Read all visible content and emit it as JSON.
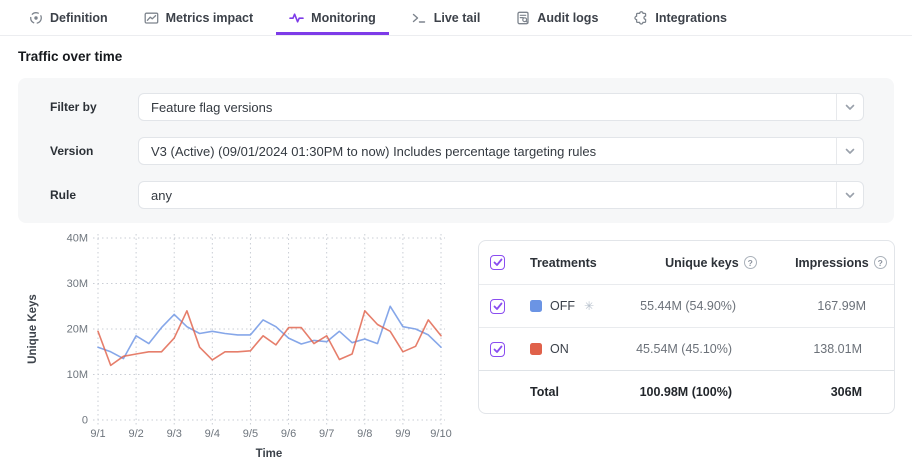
{
  "colors": {
    "accent": "#7d3be8",
    "off_blue": "#6b94e4",
    "on_red": "#e0614a"
  },
  "tabs": {
    "items": [
      {
        "label": "Definition",
        "icon": "target-icon",
        "active": false
      },
      {
        "label": "Metrics impact",
        "icon": "metrics-chart-icon",
        "active": false
      },
      {
        "label": "Monitoring",
        "icon": "pulse-icon",
        "active": true
      },
      {
        "label": "Live tail",
        "icon": "terminal-icon",
        "active": false
      },
      {
        "label": "Audit logs",
        "icon": "audit-log-icon",
        "active": false
      },
      {
        "label": "Integrations",
        "icon": "puzzle-icon",
        "active": false
      }
    ]
  },
  "page": {
    "title": "Traffic over time"
  },
  "filters": {
    "rows": [
      {
        "label": "Filter by",
        "value": "Feature flag versions"
      },
      {
        "label": "Version",
        "value": "V3 (Active) (09/01/2024 01:30PM to now) Includes percentage targeting rules"
      },
      {
        "label": "Rule",
        "value": "any"
      }
    ]
  },
  "chart_data": {
    "type": "line",
    "xlabel": "Time",
    "ylabel": "Unique Keys",
    "x_ticks": [
      "9/1",
      "9/2",
      "9/3",
      "9/4",
      "9/5",
      "9/6",
      "9/7",
      "9/8",
      "9/9",
      "9/10"
    ],
    "y_ticks": [
      "0",
      "10M",
      "20M",
      "30M",
      "40M"
    ],
    "ylim": [
      0,
      40
    ],
    "unit": "M",
    "grid": "dotted",
    "series": [
      {
        "name": "OFF",
        "color": "#6b94e4",
        "values": [
          16,
          15,
          13.5,
          18.5,
          16.8,
          20.3,
          23.2,
          20.5,
          19,
          19.5,
          19,
          18.7,
          18.7,
          22,
          20.5,
          18,
          16.7,
          17.5,
          17.2,
          19.5,
          17,
          17.8,
          16.8,
          25,
          20.5,
          20,
          18.7,
          16
        ]
      },
      {
        "name": "ON",
        "color": "#e0614a",
        "values": [
          19.5,
          12,
          14,
          14.5,
          15,
          15,
          18,
          24,
          16,
          13.2,
          15,
          15,
          15.2,
          18.5,
          16.5,
          20.3,
          20.3,
          16.8,
          18.5,
          13.3,
          14.5,
          24,
          21,
          19.5,
          15,
          16.2,
          22,
          18.5
        ]
      }
    ]
  },
  "table": {
    "headers": {
      "treatments": "Treatments",
      "unique_keys": "Unique keys",
      "impressions": "Impressions"
    },
    "rows": [
      {
        "name": "OFF",
        "swatch": "#6b94e4",
        "default_badge": "✳",
        "unique_keys": "55.44M (54.90%)",
        "impressions": "167.99M"
      },
      {
        "name": "ON",
        "swatch": "#e0614a",
        "unique_keys": "45.54M (45.10%)",
        "impressions": "138.01M"
      }
    ],
    "total": {
      "label": "Total",
      "unique_keys": "100.98M (100%)",
      "impressions": "306M"
    }
  }
}
